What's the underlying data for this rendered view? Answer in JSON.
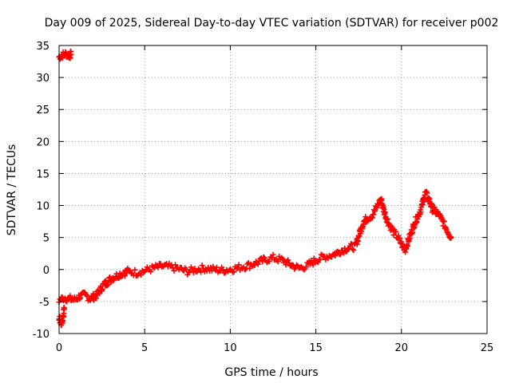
{
  "chart_data": {
    "type": "scatter",
    "title": "Day 009 of 2025, Sidereal Day-to-day VTEC variation (SDTVAR) for receiver p002",
    "xlabel": "GPS time / hours",
    "ylabel": "SDTVAR / TECUs",
    "xlim": [
      0,
      25
    ],
    "ylim": [
      -10,
      35
    ],
    "xticks": [
      0,
      5,
      10,
      15,
      20,
      25
    ],
    "yticks": [
      -10,
      -5,
      0,
      5,
      10,
      15,
      20,
      25,
      30,
      35
    ],
    "grid": true,
    "marker": "+",
    "marker_color": "#ff0000",
    "series": [
      {
        "name": "p002",
        "approx_trace": [
          [
            0.0,
            33.2
          ],
          [
            0.2,
            33.5
          ],
          [
            0.4,
            33.7
          ],
          [
            0.6,
            33.4
          ],
          [
            0.7,
            33.6
          ],
          [
            0.0,
            -7.5
          ],
          [
            0.1,
            -8.5
          ],
          [
            0.2,
            -8.0
          ],
          [
            0.3,
            -6.0
          ],
          [
            0.0,
            -4.8
          ],
          [
            0.3,
            -4.4
          ],
          [
            0.6,
            -4.6
          ],
          [
            0.9,
            -4.7
          ],
          [
            1.2,
            -4.2
          ],
          [
            1.5,
            -4.0
          ],
          [
            1.8,
            -4.5
          ],
          [
            2.0,
            -4.3
          ],
          [
            2.2,
            -4.0
          ],
          [
            2.4,
            -3.2
          ],
          [
            2.6,
            -2.4
          ],
          [
            2.8,
            -2.0
          ],
          [
            3.0,
            -1.5
          ],
          [
            3.2,
            -1.2
          ],
          [
            3.5,
            -0.8
          ],
          [
            3.8,
            -0.5
          ],
          [
            4.0,
            -0.3
          ],
          [
            4.5,
            -0.5
          ],
          [
            5.0,
            -0.2
          ],
          [
            5.5,
            0.2
          ],
          [
            6.0,
            0.5
          ],
          [
            6.5,
            0.4
          ],
          [
            7.0,
            0.1
          ],
          [
            7.5,
            -0.3
          ],
          [
            8.0,
            0.0
          ],
          [
            8.5,
            0.2
          ],
          [
            9.0,
            0.0
          ],
          [
            9.5,
            -0.1
          ],
          [
            10.0,
            0.0
          ],
          [
            10.5,
            0.3
          ],
          [
            11.0,
            0.6
          ],
          [
            11.5,
            1.0
          ],
          [
            12.0,
            1.5
          ],
          [
            12.5,
            1.8
          ],
          [
            13.0,
            1.5
          ],
          [
            13.5,
            0.8
          ],
          [
            14.0,
            0.2
          ],
          [
            14.5,
            0.6
          ],
          [
            15.0,
            1.5
          ],
          [
            15.5,
            2.0
          ],
          [
            16.0,
            2.3
          ],
          [
            16.5,
            3.0
          ],
          [
            17.0,
            3.5
          ],
          [
            17.3,
            3.6
          ],
          [
            17.6,
            6.0
          ],
          [
            17.8,
            7.5
          ],
          [
            18.0,
            8.0
          ],
          [
            18.3,
            8.5
          ],
          [
            18.6,
            10.0
          ],
          [
            18.8,
            11.0
          ],
          [
            19.0,
            9.0
          ],
          [
            19.2,
            7.5
          ],
          [
            19.5,
            6.0
          ],
          [
            19.8,
            5.0
          ],
          [
            20.0,
            4.0
          ],
          [
            20.2,
            3.0
          ],
          [
            20.4,
            4.5
          ],
          [
            20.6,
            6.0
          ],
          [
            20.8,
            7.5
          ],
          [
            21.0,
            8.5
          ],
          [
            21.2,
            10.0
          ],
          [
            21.4,
            12.0
          ],
          [
            21.6,
            11.0
          ],
          [
            21.8,
            9.5
          ],
          [
            22.0,
            9.0
          ],
          [
            22.2,
            8.5
          ],
          [
            22.4,
            7.5
          ],
          [
            22.6,
            6.5
          ],
          [
            22.8,
            5.5
          ],
          [
            22.9,
            5.0
          ]
        ]
      }
    ]
  }
}
